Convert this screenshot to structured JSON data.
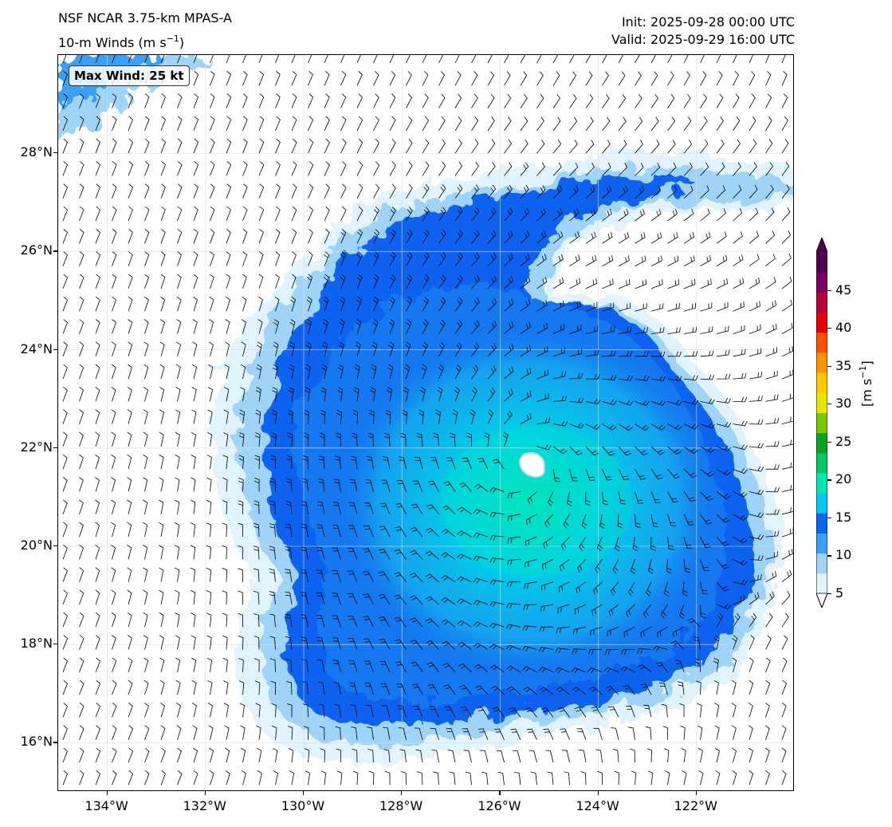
{
  "header": {
    "title_left_line1": "NSF NCAR 3.75-km MPAS-A",
    "title_left_line2_prefix": "10-m Winds (m s",
    "title_left_line2_sup": "−1",
    "title_left_line2_suffix": ")",
    "init": "Init: 2025-09-28 00:00 UTC",
    "valid": "Valid: 2025-09-29 16:00 UTC"
  },
  "annotation": {
    "max_wind": "Max Wind: 25 kt"
  },
  "axes": {
    "lat_labels": [
      "28°N",
      "26°N",
      "24°N",
      "22°N",
      "20°N",
      "18°N",
      "16°N"
    ],
    "lat_values": [
      28,
      26,
      24,
      22,
      20,
      18,
      16
    ],
    "lon_labels": [
      "134°W",
      "132°W",
      "130°W",
      "128°W",
      "126°W",
      "124°W",
      "122°W"
    ],
    "lon_values": [
      -134,
      -132,
      -130,
      -128,
      -126,
      -124,
      -122
    ],
    "lat_range": [
      15,
      30
    ],
    "lon_range": [
      -135,
      -120
    ]
  },
  "storm": {
    "center_lat": 21.7,
    "center_lon": -125.5,
    "max_wind_kt": 25
  },
  "colorbar": {
    "ticks": [
      "5",
      "10",
      "15",
      "20",
      "25",
      "30",
      "35",
      "40",
      "45"
    ],
    "tick_values": [
      5,
      10,
      15,
      20,
      25,
      30,
      35,
      40,
      45
    ],
    "range": [
      5,
      50
    ],
    "unit_prefix": "[m s",
    "unit_sup": "−1",
    "unit_suffix": "]",
    "colors": [
      "#e1f3ff",
      "#9fd3f7",
      "#3aa0f2",
      "#0a64f0",
      "#00c8f0",
      "#00e6b4",
      "#00c864",
      "#0ea01e",
      "#7cc800",
      "#e6e600",
      "#ffc800",
      "#ff9600",
      "#ff5000",
      "#e60000",
      "#b4003c",
      "#780064",
      "#500050"
    ]
  }
}
